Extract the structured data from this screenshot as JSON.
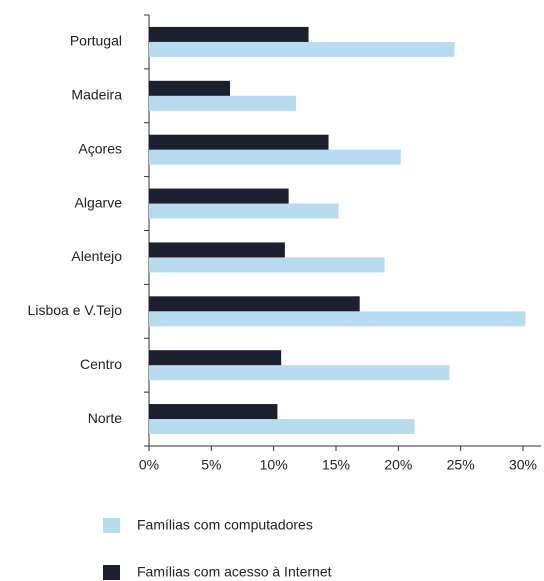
{
  "chart_data": {
    "type": "hbar",
    "categories": [
      "Portugal",
      "Madeira",
      "Açores",
      "Algarve",
      "Alentejo",
      "Lisboa e V.Tejo",
      "Centro",
      "Norte"
    ],
    "series": [
      {
        "name": "Famílias com computadores",
        "color": "#b8dcef",
        "values": [
          24.5,
          11.8,
          20.2,
          15.2,
          18.9,
          30.2,
          24.1,
          21.3
        ]
      },
      {
        "name": "Famílias com acesso à Internet",
        "color": "#1c1f2e",
        "values": [
          12.8,
          6.5,
          14.4,
          11.2,
          10.9,
          16.9,
          10.6,
          10.3
        ]
      }
    ],
    "xlim": [
      0,
      30
    ],
    "xticks": [
      {
        "value": 0,
        "label": "0%"
      },
      {
        "value": 5,
        "label": "5%"
      },
      {
        "value": 10,
        "label": "10%"
      },
      {
        "value": 15,
        "label": "15%"
      },
      {
        "value": 20,
        "label": "20%"
      },
      {
        "value": 25,
        "label": "25%"
      },
      {
        "value": 30,
        "label": "30%"
      }
    ],
    "legend": "bottom"
  }
}
